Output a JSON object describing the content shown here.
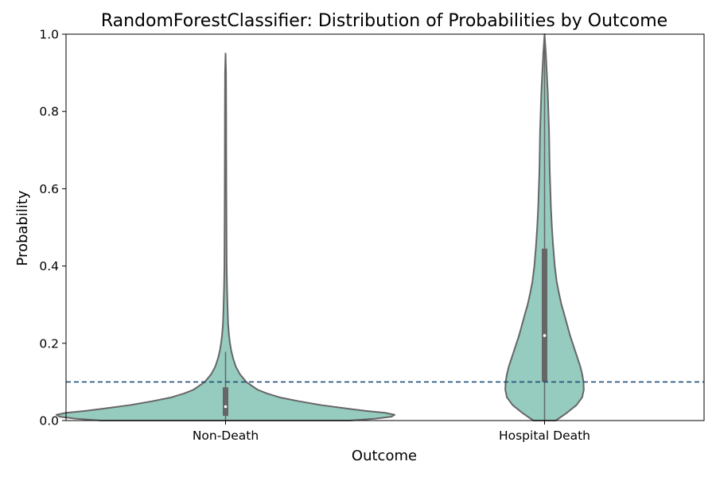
{
  "chart_data": {
    "type": "violin",
    "title": "RandomForestClassifier: Distribution of Probabilities by Outcome",
    "xlabel": "Outcome",
    "ylabel": "Probability",
    "ylim": [
      0,
      1
    ],
    "categories": [
      "Non-Death",
      "Hospital Death"
    ],
    "y_ticks": [
      "0.0",
      "0.2",
      "0.4",
      "0.6",
      "0.8",
      "1.0"
    ],
    "threshold": 0.1,
    "grid": false,
    "colors": {
      "violin_fill": "#96cbbf",
      "violin_edge": "#666666",
      "threshold_line": "#1f4e79",
      "box": "#666666",
      "median_dot": "#ffffff"
    },
    "violins": [
      {
        "category": "Non-Death",
        "quartiles": {
          "q1": 0.012,
          "median": 0.036,
          "q3": 0.086
        },
        "whiskers": [
          0.0,
          0.178
        ],
        "profile": [
          {
            "y": 0.0,
            "w": 0.39
          },
          {
            "y": 0.005,
            "w": 0.47
          },
          {
            "y": 0.01,
            "w": 0.52
          },
          {
            "y": 0.015,
            "w": 0.53
          },
          {
            "y": 0.02,
            "w": 0.5
          },
          {
            "y": 0.025,
            "w": 0.44
          },
          {
            "y": 0.03,
            "w": 0.39
          },
          {
            "y": 0.04,
            "w": 0.3
          },
          {
            "y": 0.05,
            "w": 0.23
          },
          {
            "y": 0.06,
            "w": 0.17
          },
          {
            "y": 0.07,
            "w": 0.13
          },
          {
            "y": 0.08,
            "w": 0.1
          },
          {
            "y": 0.1,
            "w": 0.065
          },
          {
            "y": 0.12,
            "w": 0.045
          },
          {
            "y": 0.14,
            "w": 0.032
          },
          {
            "y": 0.16,
            "w": 0.024
          },
          {
            "y": 0.18,
            "w": 0.018
          },
          {
            "y": 0.2,
            "w": 0.014
          },
          {
            "y": 0.22,
            "w": 0.011
          },
          {
            "y": 0.25,
            "w": 0.008
          },
          {
            "y": 0.3,
            "w": 0.006
          },
          {
            "y": 0.35,
            "w": 0.0045
          },
          {
            "y": 0.4,
            "w": 0.0035
          },
          {
            "y": 0.5,
            "w": 0.003
          },
          {
            "y": 0.6,
            "w": 0.0025
          },
          {
            "y": 0.7,
            "w": 0.0022
          },
          {
            "y": 0.8,
            "w": 0.002
          },
          {
            "y": 0.9,
            "w": 0.0015
          },
          {
            "y": 0.95,
            "w": 0.0
          }
        ]
      },
      {
        "category": "Hospital Death",
        "quartiles": {
          "q1": 0.1,
          "median": 0.22,
          "q3": 0.445
        },
        "whiskers": [
          0.0,
          1.0
        ],
        "profile": [
          {
            "y": 0.0,
            "w": 0.035
          },
          {
            "y": 0.02,
            "w": 0.07
          },
          {
            "y": 0.04,
            "w": 0.1
          },
          {
            "y": 0.06,
            "w": 0.118
          },
          {
            "y": 0.08,
            "w": 0.123
          },
          {
            "y": 0.1,
            "w": 0.122
          },
          {
            "y": 0.12,
            "w": 0.118
          },
          {
            "y": 0.14,
            "w": 0.112
          },
          {
            "y": 0.16,
            "w": 0.104
          },
          {
            "y": 0.18,
            "w": 0.096
          },
          {
            "y": 0.2,
            "w": 0.088
          },
          {
            "y": 0.22,
            "w": 0.08
          },
          {
            "y": 0.25,
            "w": 0.07
          },
          {
            "y": 0.28,
            "w": 0.06
          },
          {
            "y": 0.3,
            "w": 0.053
          },
          {
            "y": 0.33,
            "w": 0.045
          },
          {
            "y": 0.36,
            "w": 0.038
          },
          {
            "y": 0.4,
            "w": 0.032
          },
          {
            "y": 0.45,
            "w": 0.027
          },
          {
            "y": 0.5,
            "w": 0.023
          },
          {
            "y": 0.55,
            "w": 0.02
          },
          {
            "y": 0.6,
            "w": 0.018
          },
          {
            "y": 0.65,
            "w": 0.016
          },
          {
            "y": 0.7,
            "w": 0.015
          },
          {
            "y": 0.75,
            "w": 0.014
          },
          {
            "y": 0.8,
            "w": 0.012
          },
          {
            "y": 0.85,
            "w": 0.01
          },
          {
            "y": 0.9,
            "w": 0.007
          },
          {
            "y": 0.95,
            "w": 0.004
          },
          {
            "y": 1.0,
            "w": 0.0
          }
        ]
      }
    ]
  }
}
